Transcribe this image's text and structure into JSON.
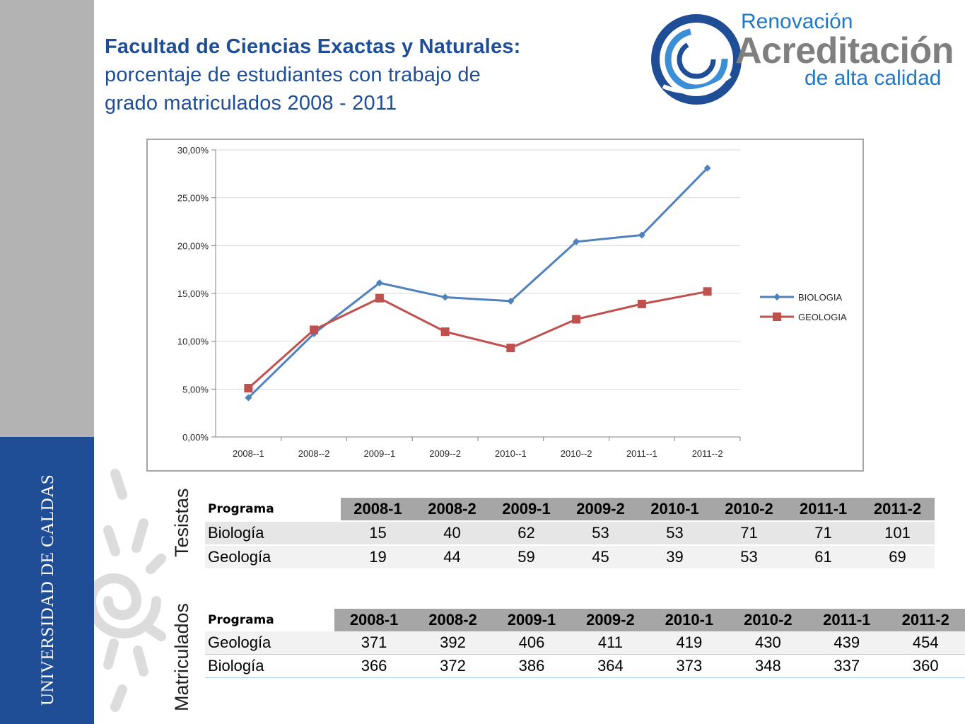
{
  "sidebar": {
    "university": "UNIVERSIDAD DE CALDAS"
  },
  "title": {
    "bold": "Facultad de Ciencias Exactas y Naturales:",
    "line2": "porcentaje de estudiantes con trabajo de",
    "line3": "grado matriculados 2008 - 2011"
  },
  "logo": {
    "line1": "Renovación",
    "line2": "Acreditación",
    "line3": "de alta calidad"
  },
  "colors": {
    "biologia": "#4f81bd",
    "geologia": "#c0504d",
    "brand_blue": "#1f4e97",
    "sidebar_gray": "#b3b3b3"
  },
  "chart_data": {
    "type": "line",
    "categories": [
      "2008--1",
      "2008--2",
      "2009--1",
      "2009--2",
      "2010--1",
      "2010--2",
      "2011--1",
      "2011--2"
    ],
    "ylim": [
      0,
      30
    ],
    "yticks": [
      "0,00%",
      "5,00%",
      "10,00%",
      "15,00%",
      "20,00%",
      "25,00%",
      "30,00%"
    ],
    "grid": true,
    "legend": "right",
    "series": [
      {
        "name": "BIOLOGIA",
        "marker": "diamond",
        "values": [
          4.1,
          10.8,
          16.1,
          14.6,
          14.2,
          20.4,
          21.1,
          28.1
        ]
      },
      {
        "name": "GEOLOGIA",
        "marker": "square",
        "values": [
          5.1,
          11.2,
          14.5,
          11.0,
          9.3,
          12.3,
          13.9,
          15.2
        ]
      }
    ]
  },
  "tesistas": {
    "label": "Tesistas",
    "header": "Programa",
    "periods": [
      "2008-1",
      "2008-2",
      "2009-1",
      "2009-2",
      "2010-1",
      "2010-2",
      "2011-1",
      "2011-2"
    ],
    "rows": [
      {
        "name": "Biología",
        "values": [
          "15",
          "40",
          "62",
          "53",
          "53",
          "71",
          "71",
          "101"
        ]
      },
      {
        "name": "Geología",
        "values": [
          "19",
          "44",
          "59",
          "45",
          "39",
          "53",
          "61",
          "69"
        ]
      }
    ]
  },
  "matriculados": {
    "label": "Matriculados",
    "header": "Programa",
    "periods": [
      "2008-1",
      "2008-2",
      "2009-1",
      "2009-2",
      "2010-1",
      "2010-2",
      "2011-1",
      "2011-2"
    ],
    "rows": [
      {
        "name": "Geología",
        "values": [
          "371",
          "392",
          "406",
          "411",
          "419",
          "430",
          "439",
          "454"
        ]
      },
      {
        "name": "Biología",
        "values": [
          "366",
          "372",
          "386",
          "364",
          "373",
          "348",
          "337",
          "360"
        ]
      }
    ]
  }
}
